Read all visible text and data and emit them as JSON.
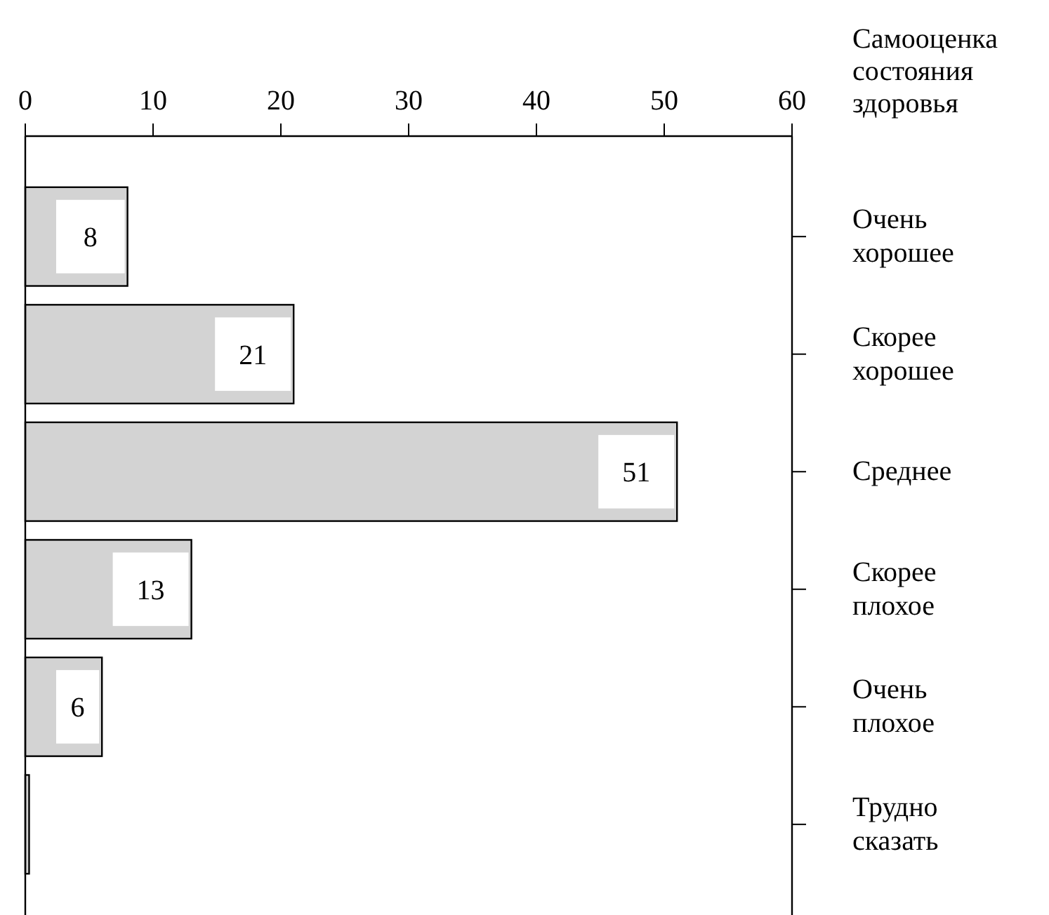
{
  "chart_data": {
    "type": "bar",
    "orientation": "horizontal",
    "ylabel": "Самооценка состояния здоровья",
    "categories": [
      "Очень хорошее",
      "Скорее хорошее",
      "Среднее",
      "Скорее плохое",
      "Очень плохое",
      "Трудно сказать"
    ],
    "values": [
      8,
      21,
      51,
      13,
      6,
      0.3
    ],
    "value_labels": [
      "8",
      "21",
      "51",
      "13",
      "6",
      null
    ],
    "color": "#d3d3d3",
    "xlim": [
      0,
      60
    ],
    "xticks": [
      0,
      10,
      20,
      30,
      40,
      50,
      60
    ],
    "grid": false
  }
}
